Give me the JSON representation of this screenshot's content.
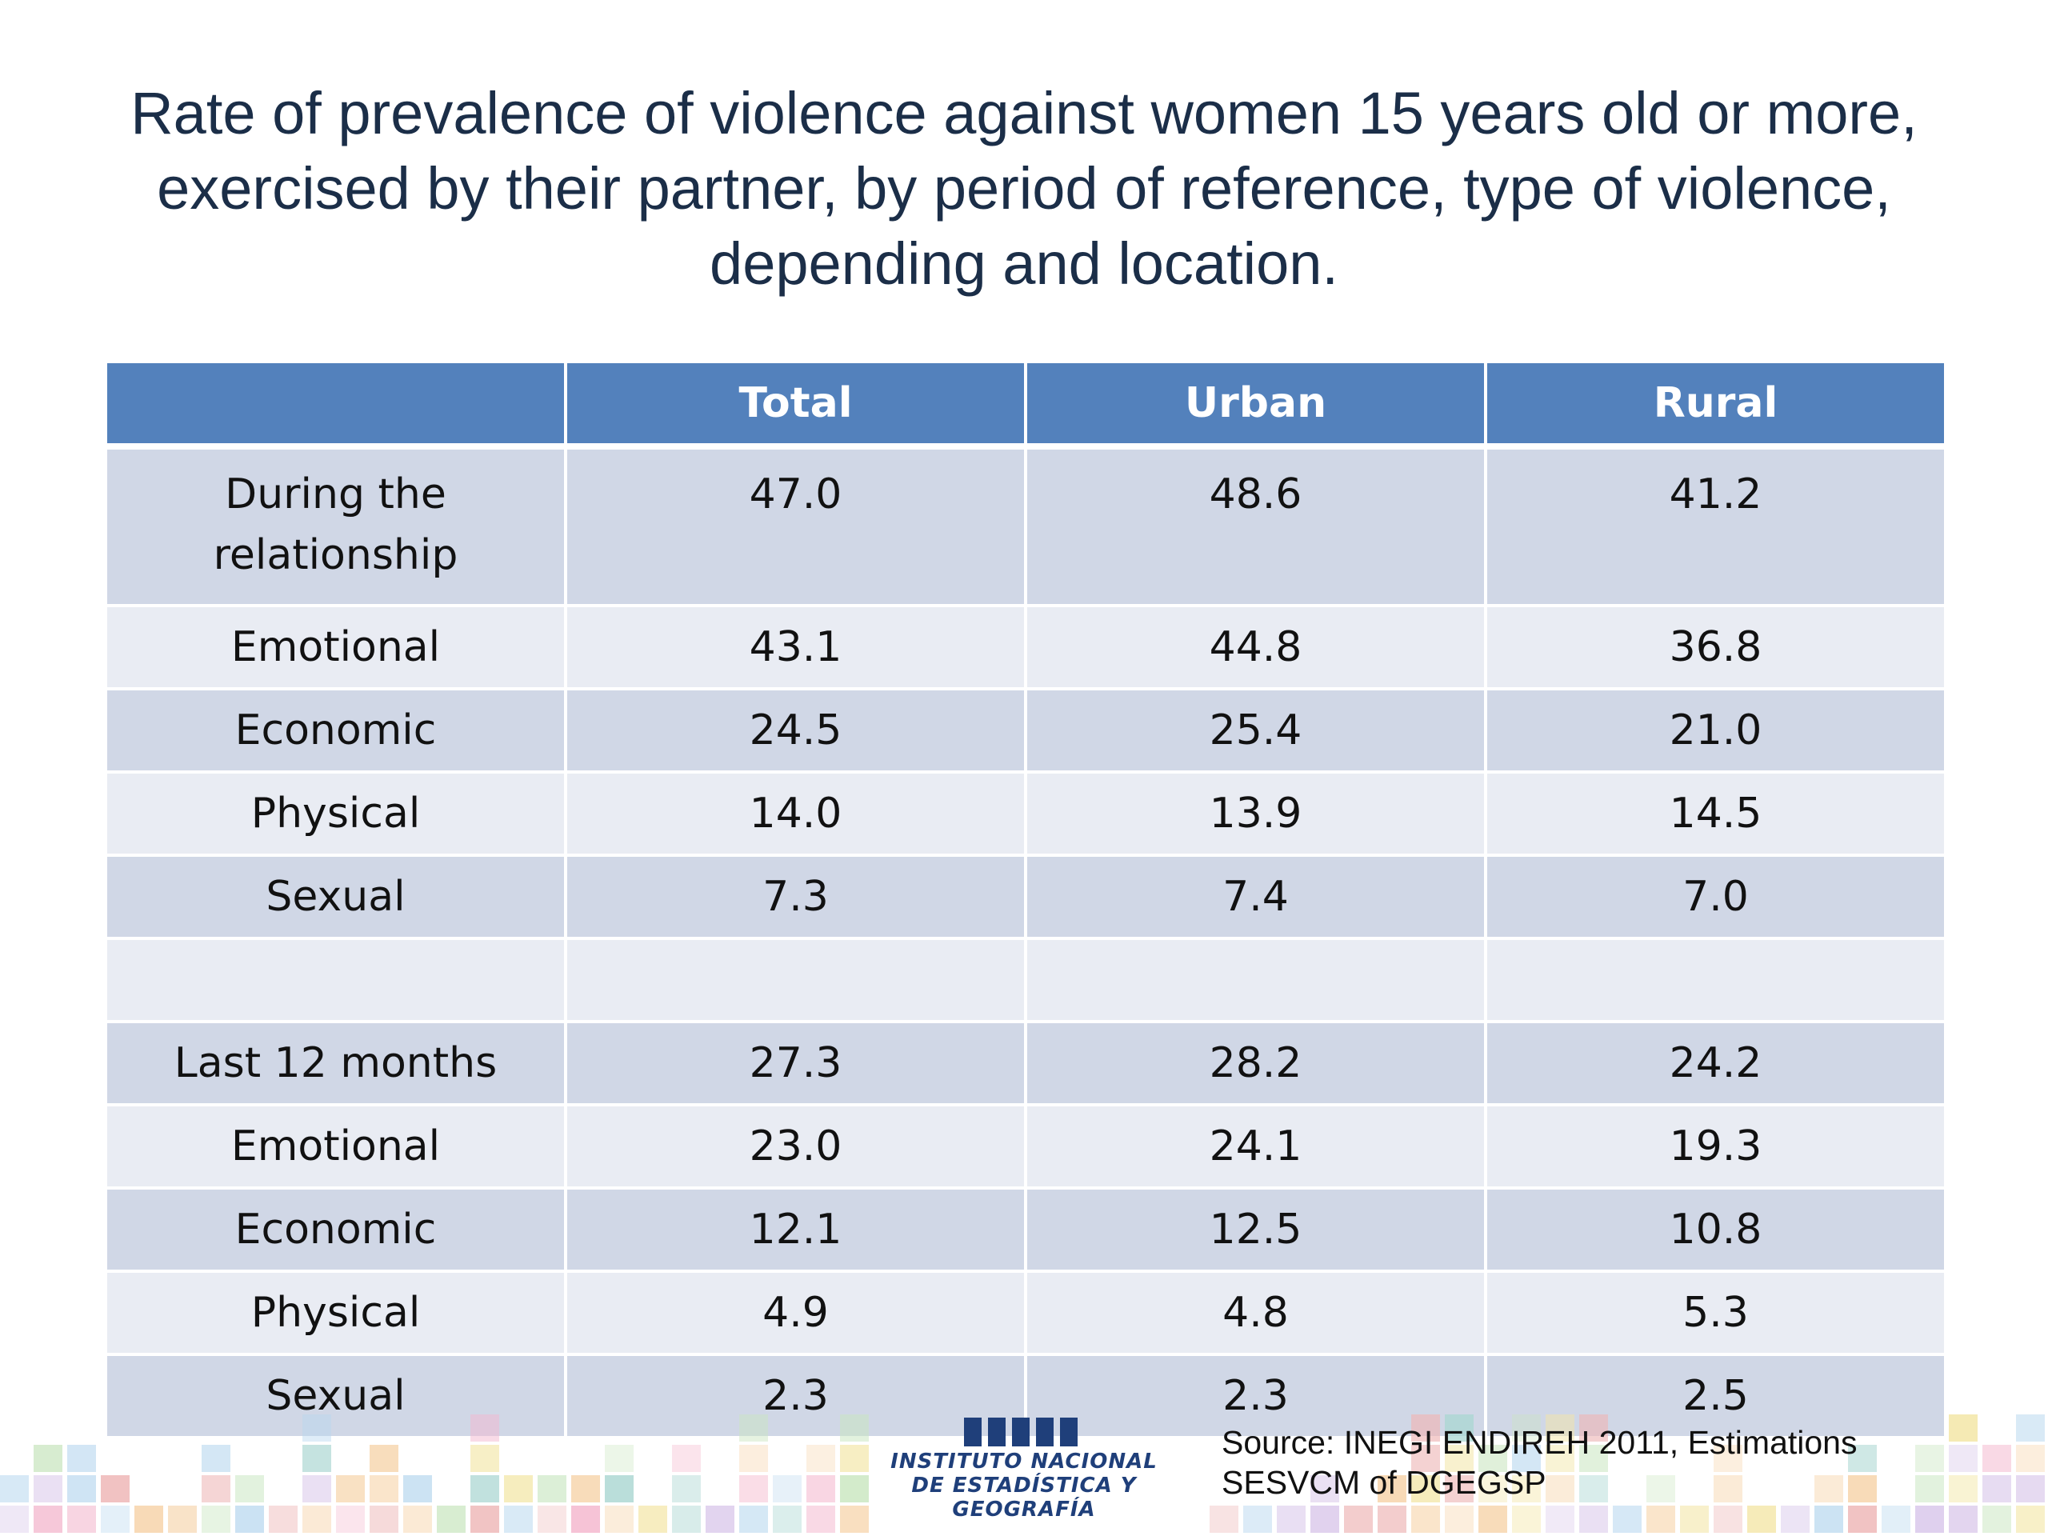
{
  "title": "Rate of prevalence of violence against women 15 years old or more, exercised by their partner, by period of reference, type of violence, depending and location.",
  "table": {
    "headers": [
      "",
      "Total",
      "Urban",
      "Rural"
    ],
    "rows": [
      [
        "During the relationship",
        "47.0",
        "48.6",
        "41.2"
      ],
      [
        "Emotional",
        "43.1",
        "44.8",
        "36.8"
      ],
      [
        "Economic",
        "24.5",
        "25.4",
        "21.0"
      ],
      [
        "Physical",
        "14.0",
        "13.9",
        "14.5"
      ],
      [
        "Sexual",
        "7.3",
        "7.4",
        "7.0"
      ],
      [
        "",
        "",
        "",
        ""
      ],
      [
        "Last 12 months",
        "27.3",
        "28.2",
        "24.2"
      ],
      [
        "Emotional",
        "23.0",
        "24.1",
        "19.3"
      ],
      [
        "Economic",
        "12.1",
        "12.5",
        "10.8"
      ],
      [
        "Physical",
        "4.9",
        "4.8",
        "5.3"
      ],
      [
        "Sexual",
        "2.3",
        "2.3",
        "2.5"
      ]
    ]
  },
  "logo": {
    "line1": "INSTITUTO NACIONAL",
    "line2": "DE ESTADÍSTICA Y GEOGRAFÍA"
  },
  "source": {
    "line1": "Source: INEGI ENDIREH 2011, Estimations",
    "line2": "SESVCM  of DGEGSP"
  },
  "colors": {
    "header_bg": "#5381bc",
    "row_dark": "#d0d7e6",
    "row_light": "#e9ecf3",
    "title_text": "#1b2e48",
    "logo_blue": "#1f3f7a"
  }
}
